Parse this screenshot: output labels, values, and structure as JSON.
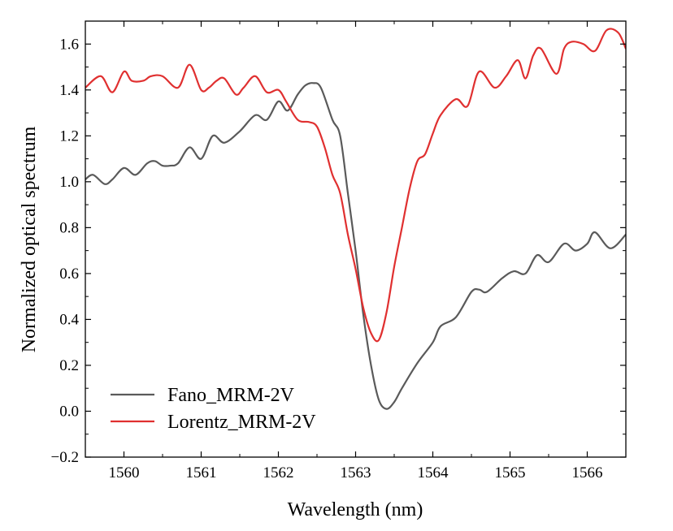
{
  "chart_data": {
    "type": "line",
    "title": "",
    "xlabel": "Wavelength (nm)",
    "ylabel": "Normalized optical spectrum",
    "xlim": [
      1559.5,
      1566.5
    ],
    "ylim": [
      -0.2,
      1.7
    ],
    "xticks": [
      1560,
      1561,
      1562,
      1563,
      1564,
      1565,
      1566
    ],
    "xtick_labels": [
      "1560",
      "1561",
      "1562",
      "1563",
      "1564",
      "1565",
      "1566"
    ],
    "yticks": [
      -0.2,
      0.0,
      0.2,
      0.4,
      0.6,
      0.8,
      1.0,
      1.2,
      1.4,
      1.6
    ],
    "ytick_labels": [
      "−0.2",
      "0.0",
      "0.2",
      "0.4",
      "0.6",
      "0.8",
      "1.0",
      "1.2",
      "1.4",
      "1.6"
    ],
    "grid": false,
    "legend_position": "bottom-left",
    "series": [
      {
        "name": "Fano_MRM-2V",
        "color": "#5a5a5a",
        "x": [
          1559.5,
          1559.6,
          1559.75,
          1559.85,
          1560.0,
          1560.15,
          1560.3,
          1560.4,
          1560.5,
          1560.6,
          1560.7,
          1560.85,
          1561.0,
          1561.15,
          1561.3,
          1561.5,
          1561.7,
          1561.85,
          1562.0,
          1562.12,
          1562.25,
          1562.35,
          1562.45,
          1562.55,
          1562.7,
          1562.8,
          1562.9,
          1563.0,
          1563.1,
          1563.2,
          1563.3,
          1563.4,
          1563.5,
          1563.6,
          1563.8,
          1564.0,
          1564.1,
          1564.3,
          1564.5,
          1564.6,
          1564.7,
          1564.9,
          1565.05,
          1565.2,
          1565.35,
          1565.5,
          1565.7,
          1565.85,
          1566.0,
          1566.1,
          1566.3,
          1566.5
        ],
        "y": [
          1.01,
          1.03,
          0.99,
          1.01,
          1.06,
          1.03,
          1.08,
          1.09,
          1.07,
          1.07,
          1.08,
          1.15,
          1.1,
          1.2,
          1.17,
          1.22,
          1.29,
          1.27,
          1.35,
          1.31,
          1.38,
          1.42,
          1.43,
          1.41,
          1.27,
          1.2,
          0.95,
          0.7,
          0.42,
          0.2,
          0.05,
          0.01,
          0.04,
          0.1,
          0.21,
          0.3,
          0.37,
          0.41,
          0.52,
          0.53,
          0.52,
          0.58,
          0.61,
          0.6,
          0.68,
          0.65,
          0.73,
          0.7,
          0.73,
          0.78,
          0.71,
          0.77
        ]
      },
      {
        "name": "Lorentz_MRM-2V",
        "color": "#e03030",
        "x": [
          1559.5,
          1559.7,
          1559.85,
          1560.0,
          1560.1,
          1560.25,
          1560.35,
          1560.5,
          1560.7,
          1560.85,
          1561.0,
          1561.1,
          1561.2,
          1561.3,
          1561.45,
          1561.55,
          1561.7,
          1561.85,
          1562.0,
          1562.1,
          1562.25,
          1562.4,
          1562.5,
          1562.6,
          1562.7,
          1562.8,
          1562.9,
          1563.0,
          1563.1,
          1563.2,
          1563.3,
          1563.4,
          1563.5,
          1563.6,
          1563.7,
          1563.8,
          1563.9,
          1564.0,
          1564.1,
          1564.3,
          1564.45,
          1564.6,
          1564.8,
          1564.95,
          1565.1,
          1565.2,
          1565.3,
          1565.4,
          1565.6,
          1565.7,
          1565.8,
          1565.95,
          1566.1,
          1566.25,
          1566.4,
          1566.5
        ],
        "y": [
          1.41,
          1.46,
          1.39,
          1.48,
          1.44,
          1.44,
          1.46,
          1.46,
          1.41,
          1.51,
          1.4,
          1.41,
          1.44,
          1.45,
          1.38,
          1.41,
          1.46,
          1.39,
          1.4,
          1.35,
          1.27,
          1.26,
          1.24,
          1.15,
          1.03,
          0.95,
          0.77,
          0.62,
          0.45,
          0.34,
          0.31,
          0.43,
          0.63,
          0.8,
          0.97,
          1.09,
          1.12,
          1.21,
          1.29,
          1.36,
          1.33,
          1.48,
          1.41,
          1.46,
          1.53,
          1.45,
          1.55,
          1.58,
          1.47,
          1.58,
          1.61,
          1.6,
          1.57,
          1.66,
          1.65,
          1.58
        ]
      }
    ]
  }
}
